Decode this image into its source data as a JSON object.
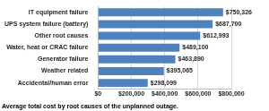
{
  "chart_data": {
    "type": "bar",
    "orientation": "horizontal",
    "title": "Average total cost by root causes of the unplanned outage.",
    "categories": [
      "IT equipment failure",
      "UPS system failure (battery)",
      "Other root causes",
      "Water, heat or CRAC failure",
      "Generator failure",
      "Weather related",
      "Accidental/human error"
    ],
    "values": [
      750326,
      687700,
      612993,
      489100,
      463890,
      395065,
      298099
    ],
    "value_labels": [
      "$750,326",
      "$687,700",
      "$612,993",
      "$489,100",
      "$463,890",
      "$395,065",
      "$298,099"
    ],
    "color": "#4f81bd",
    "xlim": [
      0,
      800000
    ],
    "xticks": [
      {
        "value": 0,
        "label": "$0"
      },
      {
        "value": 200000,
        "label": "$200,000"
      },
      {
        "value": 400000,
        "label": "$400,000"
      },
      {
        "value": 600000,
        "label": "$600,000"
      },
      {
        "value": 800000,
        "label": "$800,000"
      }
    ],
    "grid": true,
    "data_labels": true
  }
}
